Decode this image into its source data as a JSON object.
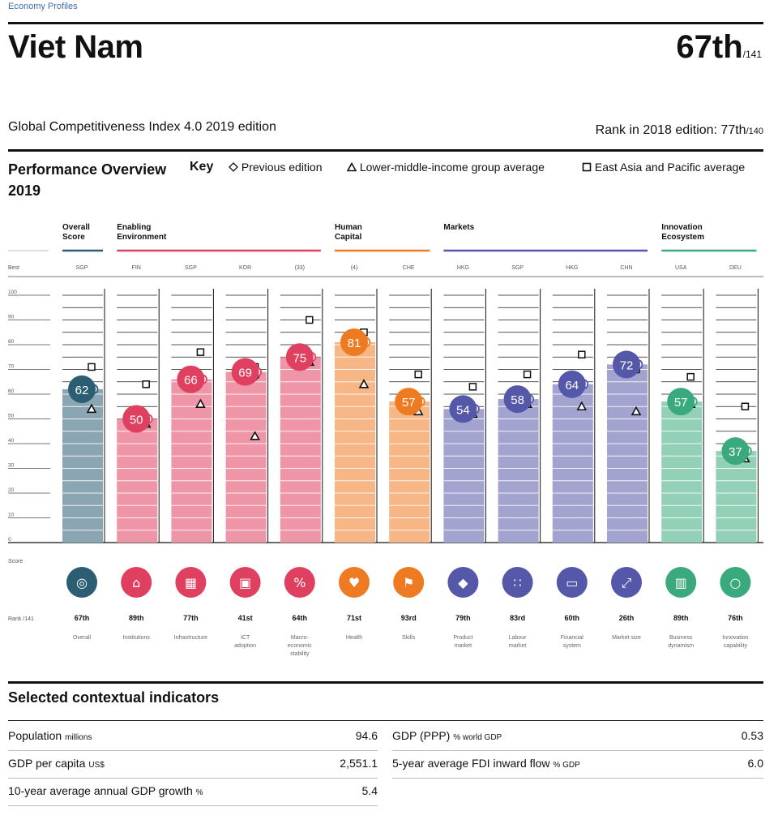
{
  "header": {
    "breadcrumb": "Economy Profiles",
    "country": "Viet Nam",
    "rank": "67th",
    "rank_of": "/141",
    "edition": "Global Competitiveness Index 4.0 2019 edition",
    "prev_rank_label": "Rank in 2018 edition: 77th",
    "prev_rank_of": "/140"
  },
  "overview": {
    "title": "Performance Overview 2019",
    "key_label": "Key",
    "key_items": [
      "Previous edition",
      "Lower-middle-income group average",
      "East Asia and Pacific average"
    ],
    "best_label": "Best",
    "score_label": "Score",
    "rank_label": "Rank /141"
  },
  "colors": {
    "Overall Score": "#2b5d73",
    "Enabling Environment": "#e0405f",
    "Human Capital": "#ee7a22",
    "Markets": "#5557a8",
    "Innovation Ecosystem": "#3aa97d"
  },
  "chart_data": {
    "type": "bar",
    "ylim": [
      0,
      100
    ],
    "yticks": [
      0,
      10,
      20,
      30,
      40,
      50,
      60,
      70,
      80,
      90,
      100
    ],
    "groups": [
      {
        "name": "Overall Score",
        "span": [
          0,
          0
        ]
      },
      {
        "name": "Enabling Environment",
        "span": [
          1,
          4
        ]
      },
      {
        "name": "Human Capital",
        "span": [
          5,
          6
        ]
      },
      {
        "name": "Markets",
        "span": [
          7,
          10
        ]
      },
      {
        "name": "Innovation Ecosystem",
        "span": [
          11,
          12
        ]
      }
    ],
    "categories": [
      "Overall",
      "Institutions",
      "Infrastructure",
      "ICT adoption",
      "Macro-economic stability",
      "Health",
      "Skills",
      "Product market",
      "Labour market",
      "Financial system",
      "Market size",
      "Business dynamism",
      "Innovation capability"
    ],
    "best": [
      "SGP",
      "FIN",
      "SGP",
      "KOR",
      "(33)",
      "(4)",
      "CHE",
      "HKG",
      "SGP",
      "HKG",
      "CHN",
      "USA",
      "DEU"
    ],
    "ranks": [
      "67th",
      "89th",
      "77th",
      "41st",
      "64th",
      "71st",
      "93rd",
      "79th",
      "83rd",
      "60th",
      "26th",
      "89th",
      "76th"
    ],
    "icons": [
      "award-icon",
      "institution-icon",
      "building-icon",
      "chip-icon",
      "percent-icon",
      "heart-icon",
      "graduation-icon",
      "tag-icon",
      "people-icon",
      "card-icon",
      "expand-icon",
      "chart-icon",
      "bulb-icon"
    ],
    "series": [
      {
        "name": "Score",
        "values": [
          62,
          50,
          66,
          69,
          75,
          81,
          57,
          54,
          58,
          64,
          72,
          57,
          37
        ]
      },
      {
        "name": "Previous edition",
        "values": [
          61,
          49,
          66,
          67,
          75,
          81,
          58,
          53,
          59,
          63,
          72,
          58,
          37
        ]
      },
      {
        "name": "Lower-middle-income group average",
        "values": [
          54,
          48,
          56,
          43,
          73,
          64,
          53,
          52,
          56,
          55,
          53,
          56,
          34
        ]
      },
      {
        "name": "East Asia and Pacific average",
        "values": [
          71,
          64,
          77,
          71,
          90,
          85,
          68,
          63,
          68,
          76,
          70,
          67,
          55
        ]
      }
    ]
  },
  "context": {
    "title": "Selected contextual indicators",
    "left": [
      {
        "label": "Population",
        "unit": "millions",
        "value": "94.6"
      },
      {
        "label": "GDP per capita",
        "unit": "US$",
        "value": "2,551.1"
      },
      {
        "label": "10-year average annual GDP growth",
        "unit": "%",
        "value": "5.4"
      }
    ],
    "right": [
      {
        "label": "GDP (PPP)",
        "unit": "% world GDP",
        "value": "0.53"
      },
      {
        "label": "5-year average FDI inward flow",
        "unit": "% GDP",
        "value": "6.0"
      }
    ]
  }
}
